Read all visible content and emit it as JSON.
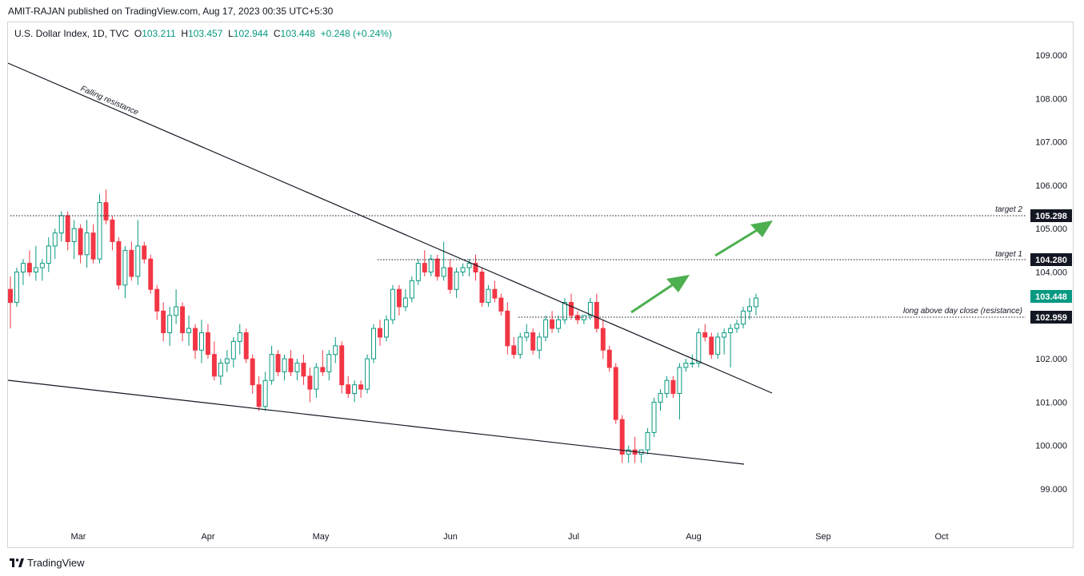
{
  "header": {
    "publisher": "AMIT-RAJAN published on TradingView.com, Aug 17, 2023 00:35 UTC+5:30"
  },
  "legend": {
    "symbol": "U.S. Dollar Index, 1D, TVC",
    "o_label": "O",
    "o_value": "103.211",
    "h_label": "H",
    "h_value": "103.457",
    "l_label": "L",
    "l_value": "102.944",
    "c_label": "C",
    "c_value": "103.448",
    "change": "+0.248 (+0.24%)"
  },
  "footer": {
    "brand": "TradingView"
  },
  "colors": {
    "up": "#089981",
    "down": "#f23645",
    "text": "#131722",
    "arrow": "#4caf50",
    "badge_dark": "#131722",
    "badge_current": "#089981"
  },
  "chart_data": {
    "type": "candlestick",
    "y_ticks": [
      "109.000",
      "108.000",
      "107.000",
      "106.000",
      "105.000",
      "104.000",
      "103.000",
      "102.000",
      "101.000",
      "100.000",
      "99.000"
    ],
    "x_ticks": [
      "Mar",
      "Apr",
      "May",
      "Jun",
      "Jul",
      "Aug",
      "Sep",
      "Oct"
    ],
    "ylim": [
      98.6,
      109.6
    ],
    "levels": [
      {
        "label": "target 2",
        "value": "105.298",
        "style": "dark"
      },
      {
        "label": "target 1",
        "value": "104.280",
        "style": "dark"
      },
      {
        "label": "long above day close (resistance)",
        "value": "102.959",
        "style": "dark"
      },
      {
        "label": "",
        "value": "103.448",
        "style": "current"
      }
    ],
    "trendline_labels": [
      "Falling resistance"
    ],
    "candles": [
      [
        103.6,
        103.9,
        102.7,
        103.3
      ],
      [
        103.3,
        104.1,
        103.2,
        104.0
      ],
      [
        104.0,
        104.3,
        103.7,
        104.2
      ],
      [
        104.2,
        104.5,
        103.9,
        104.0
      ],
      [
        104.0,
        104.6,
        103.8,
        104.1
      ],
      [
        104.1,
        104.3,
        103.8,
        104.2
      ],
      [
        104.2,
        104.8,
        104.0,
        104.6
      ],
      [
        104.6,
        105.0,
        104.3,
        104.9
      ],
      [
        104.9,
        105.4,
        104.7,
        105.3
      ],
      [
        105.3,
        105.4,
        104.5,
        104.7
      ],
      [
        104.7,
        105.2,
        104.3,
        105.0
      ],
      [
        105.0,
        105.1,
        104.2,
        104.4
      ],
      [
        104.4,
        105.2,
        104.1,
        104.9
      ],
      [
        104.9,
        105.1,
        104.2,
        104.3
      ],
      [
        104.3,
        105.8,
        104.2,
        105.6
      ],
      [
        105.6,
        105.9,
        105.1,
        105.2
      ],
      [
        105.2,
        105.3,
        104.5,
        104.7
      ],
      [
        104.7,
        104.8,
        103.6,
        103.7
      ],
      [
        103.7,
        104.6,
        103.4,
        104.5
      ],
      [
        104.5,
        104.7,
        103.8,
        103.9
      ],
      [
        103.9,
        105.2,
        103.7,
        104.6
      ],
      [
        104.6,
        104.7,
        104.2,
        104.3
      ],
      [
        104.3,
        104.4,
        103.5,
        103.6
      ],
      [
        103.6,
        103.7,
        102.9,
        103.1
      ],
      [
        103.1,
        103.3,
        102.4,
        102.6
      ],
      [
        102.6,
        103.2,
        102.3,
        103.0
      ],
      [
        103.0,
        103.6,
        102.8,
        103.2
      ],
      [
        103.2,
        103.3,
        102.4,
        102.6
      ],
      [
        102.6,
        103.0,
        102.3,
        102.7
      ],
      [
        102.7,
        102.8,
        102.0,
        102.2
      ],
      [
        102.2,
        102.9,
        101.9,
        102.6
      ],
      [
        102.6,
        102.8,
        102.0,
        102.1
      ],
      [
        102.1,
        102.4,
        101.5,
        101.6
      ],
      [
        101.6,
        102.0,
        101.4,
        101.9
      ],
      [
        101.9,
        102.2,
        101.7,
        102.0
      ],
      [
        102.0,
        102.5,
        101.8,
        102.4
      ],
      [
        102.4,
        102.8,
        102.1,
        102.6
      ],
      [
        102.6,
        102.7,
        101.9,
        102.0
      ],
      [
        102.0,
        102.1,
        101.2,
        101.4
      ],
      [
        101.4,
        101.6,
        100.8,
        100.9
      ],
      [
        100.9,
        101.7,
        100.8,
        101.5
      ],
      [
        101.5,
        102.3,
        101.4,
        102.1
      ],
      [
        102.1,
        102.2,
        101.6,
        101.7
      ],
      [
        101.7,
        102.1,
        101.5,
        102.0
      ],
      [
        102.0,
        102.2,
        101.6,
        101.7
      ],
      [
        101.7,
        102.0,
        101.5,
        101.9
      ],
      [
        101.9,
        102.1,
        101.4,
        101.6
      ],
      [
        101.6,
        101.8,
        101.0,
        101.3
      ],
      [
        101.3,
        101.9,
        101.1,
        101.8
      ],
      [
        101.8,
        102.2,
        101.6,
        101.7
      ],
      [
        101.7,
        102.2,
        101.5,
        102.1
      ],
      [
        102.1,
        102.5,
        101.9,
        102.3
      ],
      [
        102.3,
        102.4,
        101.2,
        101.4
      ],
      [
        101.4,
        101.6,
        101.1,
        101.2
      ],
      [
        101.2,
        101.5,
        101.0,
        101.4
      ],
      [
        101.4,
        101.5,
        101.1,
        101.3
      ],
      [
        101.3,
        102.1,
        101.2,
        102.0
      ],
      [
        102.0,
        102.8,
        101.9,
        102.7
      ],
      [
        102.7,
        102.9,
        102.3,
        102.5
      ],
      [
        102.5,
        103.0,
        102.4,
        102.9
      ],
      [
        102.9,
        103.7,
        102.8,
        103.6
      ],
      [
        103.6,
        103.7,
        103.0,
        103.2
      ],
      [
        103.2,
        103.6,
        103.1,
        103.4
      ],
      [
        103.4,
        103.9,
        103.3,
        103.8
      ],
      [
        103.8,
        104.3,
        103.7,
        104.2
      ],
      [
        104.2,
        104.5,
        103.9,
        104.0
      ],
      [
        104.0,
        104.4,
        103.9,
        104.3
      ],
      [
        104.3,
        104.4,
        103.8,
        103.9
      ],
      [
        103.9,
        104.7,
        103.8,
        104.1
      ],
      [
        104.1,
        104.3,
        103.5,
        103.6
      ],
      [
        103.6,
        104.1,
        103.4,
        104.0
      ],
      [
        104.0,
        104.2,
        103.9,
        104.1
      ],
      [
        104.1,
        104.3,
        103.9,
        104.2
      ],
      [
        104.2,
        104.4,
        103.8,
        104.0
      ],
      [
        104.0,
        104.1,
        103.2,
        103.3
      ],
      [
        103.3,
        103.7,
        103.2,
        103.6
      ],
      [
        103.6,
        103.8,
        103.3,
        103.4
      ],
      [
        103.4,
        103.5,
        103.0,
        103.1
      ],
      [
        103.1,
        103.3,
        102.1,
        102.3
      ],
      [
        102.3,
        102.5,
        102.0,
        102.1
      ],
      [
        102.1,
        102.6,
        102.0,
        102.5
      ],
      [
        102.5,
        102.8,
        102.4,
        102.6
      ],
      [
        102.6,
        102.7,
        102.1,
        102.2
      ],
      [
        102.2,
        102.6,
        102.0,
        102.5
      ],
      [
        102.5,
        103.0,
        102.4,
        102.9
      ],
      [
        102.9,
        103.1,
        102.6,
        102.7
      ],
      [
        102.7,
        103.0,
        102.6,
        102.9
      ],
      [
        102.9,
        103.4,
        102.8,
        103.3
      ],
      [
        103.3,
        103.5,
        102.9,
        103.0
      ],
      [
        103.0,
        103.1,
        102.8,
        102.9
      ],
      [
        102.9,
        103.0,
        102.8,
        103.0
      ],
      [
        103.0,
        103.4,
        102.9,
        103.3
      ],
      [
        103.3,
        103.5,
        102.6,
        102.7
      ],
      [
        102.7,
        102.9,
        102.0,
        102.2
      ],
      [
        102.2,
        102.3,
        101.7,
        101.8
      ],
      [
        101.8,
        101.9,
        100.5,
        100.6
      ],
      [
        100.6,
        100.7,
        99.6,
        99.8
      ],
      [
        99.8,
        100.0,
        99.6,
        99.9
      ],
      [
        99.9,
        100.2,
        99.6,
        99.8
      ],
      [
        99.8,
        99.9,
        99.6,
        99.9
      ],
      [
        99.9,
        100.4,
        99.8,
        100.3
      ],
      [
        100.3,
        101.1,
        100.2,
        101.0
      ],
      [
        101.0,
        101.3,
        100.8,
        101.2
      ],
      [
        101.2,
        101.6,
        101.1,
        101.5
      ],
      [
        101.5,
        101.6,
        101.1,
        101.2
      ],
      [
        101.2,
        101.9,
        100.6,
        101.8
      ],
      [
        101.8,
        102.0,
        101.7,
        101.9
      ],
      [
        101.9,
        102.1,
        101.8,
        101.9
      ],
      [
        101.9,
        102.7,
        101.8,
        102.6
      ],
      [
        102.6,
        102.8,
        102.4,
        102.5
      ],
      [
        102.5,
        102.6,
        102.0,
        102.1
      ],
      [
        102.1,
        102.6,
        102.0,
        102.5
      ],
      [
        102.5,
        102.7,
        102.1,
        102.6
      ],
      [
        102.6,
        102.8,
        101.8,
        102.7
      ],
      [
        102.7,
        102.9,
        102.6,
        102.8
      ],
      [
        102.8,
        103.2,
        102.7,
        103.1
      ],
      [
        103.1,
        103.4,
        102.9,
        103.2
      ],
      [
        103.2,
        103.5,
        103.0,
        103.4
      ]
    ]
  }
}
